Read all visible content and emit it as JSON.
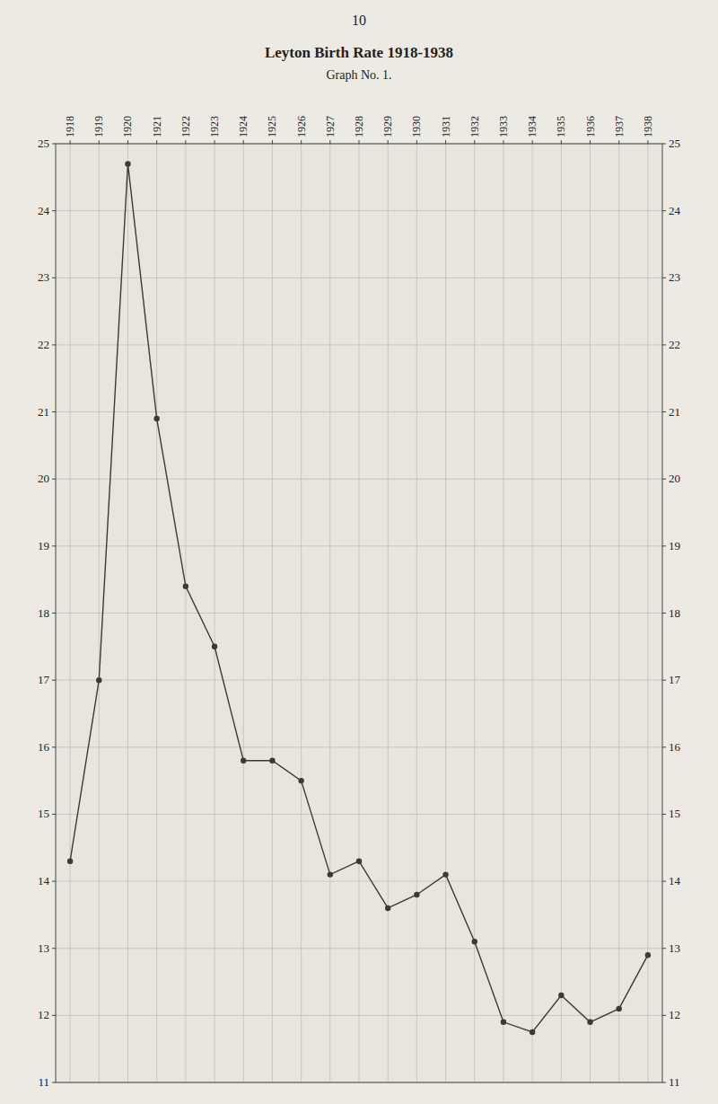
{
  "chart_data": {
    "type": "line",
    "title": "Leyton Birth Rate 1918-1938",
    "subtitle": "Graph No. 1.",
    "annotations": [
      "10"
    ],
    "x": [
      1918,
      1919,
      1920,
      1921,
      1922,
      1923,
      1924,
      1925,
      1926,
      1927,
      1928,
      1929,
      1930,
      1931,
      1932,
      1933,
      1934,
      1935,
      1936,
      1937,
      1938
    ],
    "values": [
      14.3,
      17.0,
      24.7,
      20.9,
      18.4,
      17.5,
      15.8,
      15.8,
      15.5,
      14.1,
      14.3,
      13.6,
      13.8,
      14.1,
      13.1,
      11.9,
      11.75,
      12.3,
      11.9,
      12.1,
      12.9
    ],
    "xlim": [
      1917.5,
      1938.5
    ],
    "xticks": [
      1918,
      1919,
      1920,
      1921,
      1922,
      1923,
      1924,
      1925,
      1926,
      1927,
      1928,
      1929,
      1930,
      1931,
      1932,
      1933,
      1934,
      1935,
      1936,
      1937,
      1938
    ],
    "ylim": [
      11,
      25
    ],
    "yticks": [
      11,
      12,
      13,
      14,
      15,
      16,
      17,
      18,
      19,
      20,
      21,
      22,
      23,
      24,
      25
    ],
    "grid": true,
    "color": "#3a3a3a",
    "marker": "circle"
  }
}
